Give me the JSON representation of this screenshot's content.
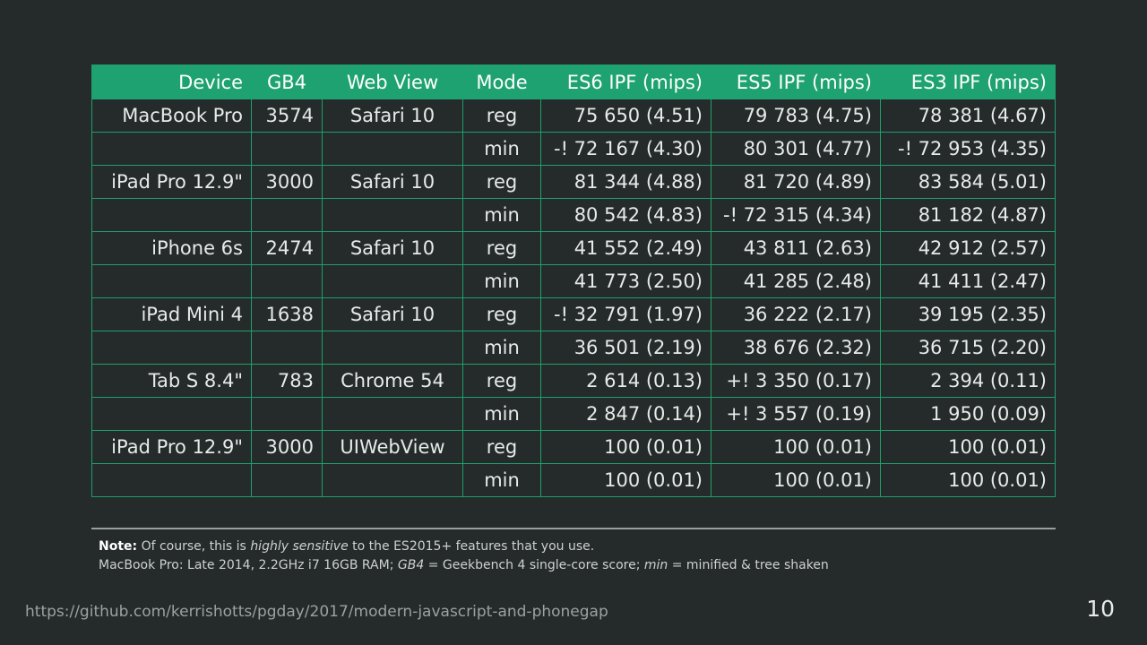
{
  "table": {
    "headers": [
      "Device",
      "GB4",
      "Web View",
      "Mode",
      "ES6 IPF (mips)",
      "ES5 IPF (mips)",
      "ES3 IPF (mips)"
    ],
    "rows": [
      {
        "device": "MacBook Pro",
        "gb4": "3574",
        "webview": "Safari 10",
        "mode": "reg",
        "es6": "75 650 (4.51)",
        "es5": "79 783 (4.75)",
        "es3": "78 381 (4.67)"
      },
      {
        "device": "",
        "gb4": "",
        "webview": "",
        "mode": "min",
        "es6": "-! 72 167 (4.30)",
        "es5": "80 301 (4.77)",
        "es3": "-! 72 953 (4.35)"
      },
      {
        "device": "iPad Pro 12.9\"",
        "gb4": "3000",
        "webview": "Safari 10",
        "mode": "reg",
        "es6": "81 344 (4.88)",
        "es5": "81 720 (4.89)",
        "es3": "83 584 (5.01)"
      },
      {
        "device": "",
        "gb4": "",
        "webview": "",
        "mode": "min",
        "es6": "80 542 (4.83)",
        "es5": "-! 72 315 (4.34)",
        "es3": "81 182 (4.87)"
      },
      {
        "device": "iPhone 6s",
        "gb4": "2474",
        "webview": "Safari 10",
        "mode": "reg",
        "es6": "41 552 (2.49)",
        "es5": "43 811 (2.63)",
        "es3": "42 912 (2.57)"
      },
      {
        "device": "",
        "gb4": "",
        "webview": "",
        "mode": "min",
        "es6": "41 773 (2.50)",
        "es5": "41 285 (2.48)",
        "es3": "41 411 (2.47)"
      },
      {
        "device": "iPad Mini 4",
        "gb4": "1638",
        "webview": "Safari 10",
        "mode": "reg",
        "es6": "-! 32 791 (1.97)",
        "es5": "36 222 (2.17)",
        "es3": "39 195 (2.35)"
      },
      {
        "device": "",
        "gb4": "",
        "webview": "",
        "mode": "min",
        "es6": "36 501 (2.19)",
        "es5": "38 676 (2.32)",
        "es3": "36 715 (2.20)"
      },
      {
        "device": "Tab S 8.4\"",
        "gb4": "783",
        "webview": "Chrome 54",
        "mode": "reg",
        "es6": "2 614 (0.13)",
        "es5": "+! 3 350 (0.17)",
        "es3": "2 394 (0.11)"
      },
      {
        "device": "",
        "gb4": "",
        "webview": "",
        "mode": "min",
        "es6": "2 847 (0.14)",
        "es5": "+! 3 557 (0.19)",
        "es3": "1 950 (0.09)"
      },
      {
        "device": "iPad Pro 12.9\"",
        "gb4": "3000",
        "webview": "UIWebView",
        "mode": "reg",
        "es6": "100 (0.01)",
        "es5": "100 (0.01)",
        "es3": "100 (0.01)"
      },
      {
        "device": "",
        "gb4": "",
        "webview": "",
        "mode": "min",
        "es6": "100 (0.01)",
        "es5": "100 (0.01)",
        "es3": "100 (0.01)"
      }
    ]
  },
  "notes": {
    "line1": {
      "label": "Note:",
      "text_a": " Of course, this is ",
      "emph": "highly sensitive",
      "text_b": " to the ES2015+ features that you use."
    },
    "line2": {
      "text_a": "MacBook Pro: Late 2014, 2.2GHz i7 16GB RAM; ",
      "emph_a": "GB4",
      "text_b": " = Geekbench 4 single-core score; ",
      "emph_b": "min",
      "text_c": " = minified & tree shaken"
    }
  },
  "footer": {
    "url": "https://github.com/kerrishotts/pgday/2017/modern-javascript-and-phonegap",
    "page_number": "10"
  },
  "colors": {
    "background": "#252a2a",
    "header": "#1ea271",
    "border": "#1fa06b"
  }
}
